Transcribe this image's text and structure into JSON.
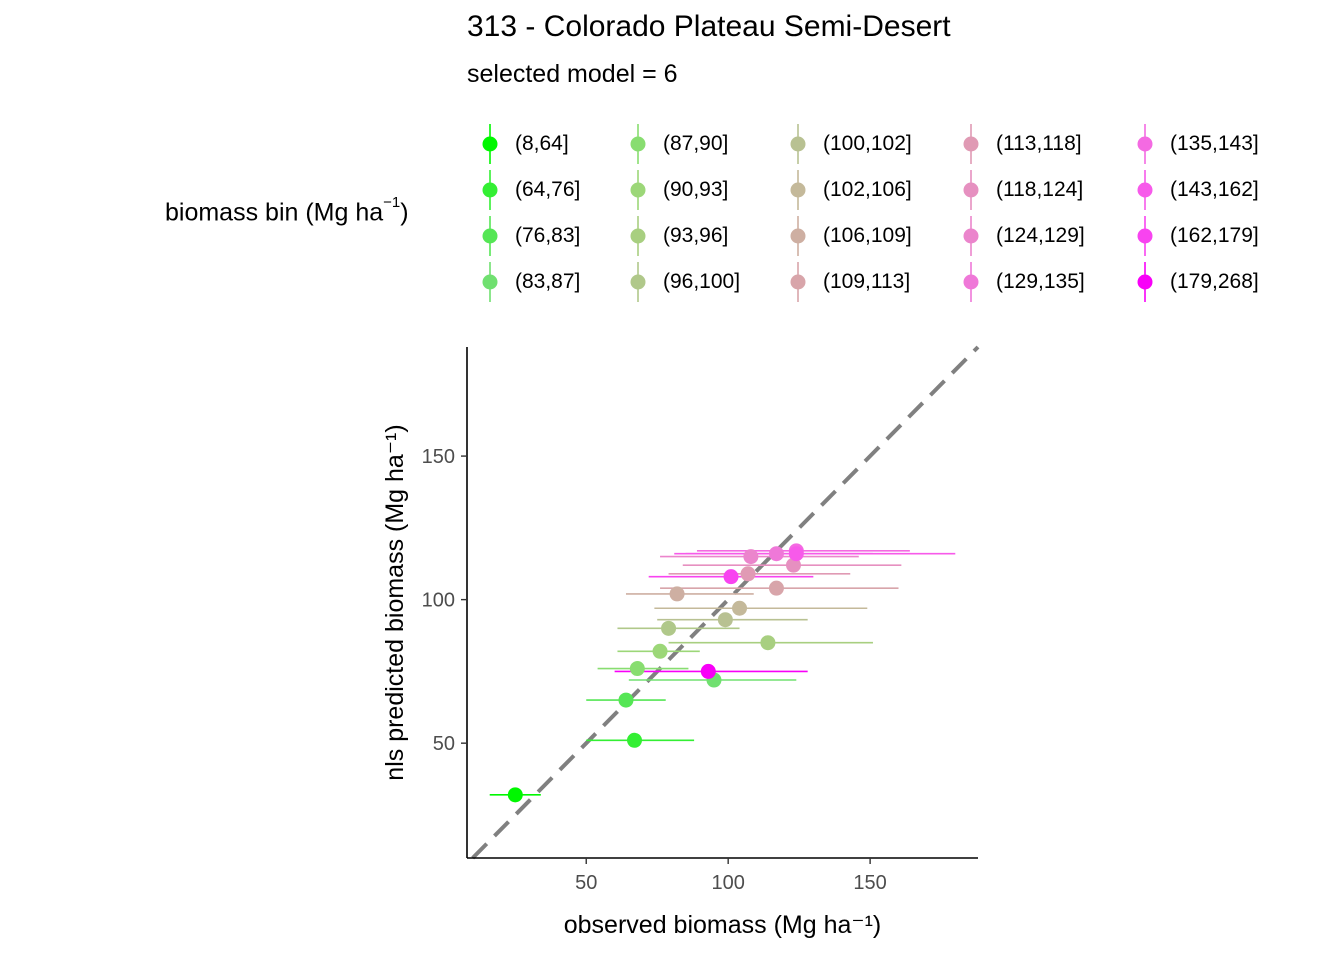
{
  "title": "313 -  Colorado Plateau Semi-Desert",
  "subtitle": "selected model = 6",
  "legend": {
    "title_main": "biomass bin (Mg ha",
    "title_sup": "−1",
    "title_end": ")",
    "placement": "top"
  },
  "chart_data": {
    "type": "scatter",
    "title": "313 -  Colorado Plateau Semi-Desert",
    "subtitle": "selected model = 6",
    "xlabel": "observed biomass (Mg ha⁻¹)",
    "ylabel": "nls predicted biomass (Mg ha⁻¹)",
    "xlim": [
      8,
      188
    ],
    "ylim": [
      10,
      188
    ],
    "xticks": [
      50,
      100,
      150
    ],
    "yticks": [
      50,
      100,
      150
    ],
    "grid": false,
    "reference_line": {
      "slope": 1,
      "intercept": 0,
      "style": "dashed",
      "color": "#808080"
    },
    "series": [
      {
        "name": "(8,64]",
        "color": "#00F700",
        "points": [
          {
            "x": 25,
            "y": 32,
            "xmin": 16,
            "xmax": 34
          }
        ]
      },
      {
        "name": "(64,76]",
        "color": "#33EF33",
        "points": [
          {
            "x": 67,
            "y": 51,
            "xmin": 50,
            "xmax": 88
          }
        ]
      },
      {
        "name": "(76,83]",
        "color": "#55E655",
        "points": [
          {
            "x": 64,
            "y": 65,
            "xmin": 50,
            "xmax": 78
          }
        ]
      },
      {
        "name": "(83,87]",
        "color": "#70E070",
        "points": [
          {
            "x": 95,
            "y": 72,
            "xmin": 65,
            "xmax": 124
          }
        ]
      },
      {
        "name": "(87,90]",
        "color": "#88DD70",
        "points": [
          {
            "x": 68,
            "y": 76,
            "xmin": 54,
            "xmax": 86
          }
        ]
      },
      {
        "name": "(90,93]",
        "color": "#9CD778",
        "points": [
          {
            "x": 76,
            "y": 82,
            "xmin": 61,
            "xmax": 90
          }
        ]
      },
      {
        "name": "(93,96]",
        "color": "#A8CF80",
        "points": [
          {
            "x": 114,
            "y": 85,
            "xmin": 79,
            "xmax": 151
          }
        ]
      },
      {
        "name": "(96,100]",
        "color": "#B0C88A",
        "points": [
          {
            "x": 79,
            "y": 90,
            "xmin": 61,
            "xmax": 104
          }
        ]
      },
      {
        "name": "(100,102]",
        "color": "#B8C192",
        "points": [
          {
            "x": 99,
            "y": 93,
            "xmin": 75,
            "xmax": 128
          }
        ]
      },
      {
        "name": "(102,106]",
        "color": "#C4B99A",
        "points": [
          {
            "x": 104,
            "y": 97,
            "xmin": 74,
            "xmax": 149
          }
        ]
      },
      {
        "name": "(106,109]",
        "color": "#CEAFA2",
        "points": [
          {
            "x": 82,
            "y": 102,
            "xmin": 64,
            "xmax": 109
          }
        ]
      },
      {
        "name": "(109,113]",
        "color": "#D8A5AA",
        "points": [
          {
            "x": 117,
            "y": 104,
            "xmin": 76,
            "xmax": 160
          }
        ]
      },
      {
        "name": "(113,118]",
        "color": "#E09AB4",
        "points": [
          {
            "x": 107,
            "y": 109,
            "xmin": 79,
            "xmax": 143
          }
        ]
      },
      {
        "name": "(118,124]",
        "color": "#E690C0",
        "points": [
          {
            "x": 123,
            "y": 112,
            "xmin": 84,
            "xmax": 161
          }
        ]
      },
      {
        "name": "(124,129]",
        "color": "#EB85CC",
        "points": [
          {
            "x": 108,
            "y": 115,
            "xmin": 76,
            "xmax": 146
          }
        ]
      },
      {
        "name": "(129,135]",
        "color": "#EF78D8",
        "points": [
          {
            "x": 117,
            "y": 116,
            "xmin": 85,
            "xmax": 151
          }
        ]
      },
      {
        "name": "(135,143]",
        "color": "#F46AE2",
        "points": [
          {
            "x": 124,
            "y": 117,
            "xmin": 89,
            "xmax": 164
          }
        ]
      },
      {
        "name": "(143,162]",
        "color": "#F75AEA",
        "points": [
          {
            "x": 124,
            "y": 116,
            "xmin": 81,
            "xmax": 180
          }
        ]
      },
      {
        "name": "(162,179]",
        "color": "#F843F0",
        "points": [
          {
            "x": 101,
            "y": 108,
            "xmin": 72,
            "xmax": 130
          }
        ]
      },
      {
        "name": "(179,268]",
        "color": "#F800F8",
        "points": [
          {
            "x": 93,
            "y": 75,
            "xmin": 60,
            "xmax": 128
          }
        ]
      }
    ]
  }
}
